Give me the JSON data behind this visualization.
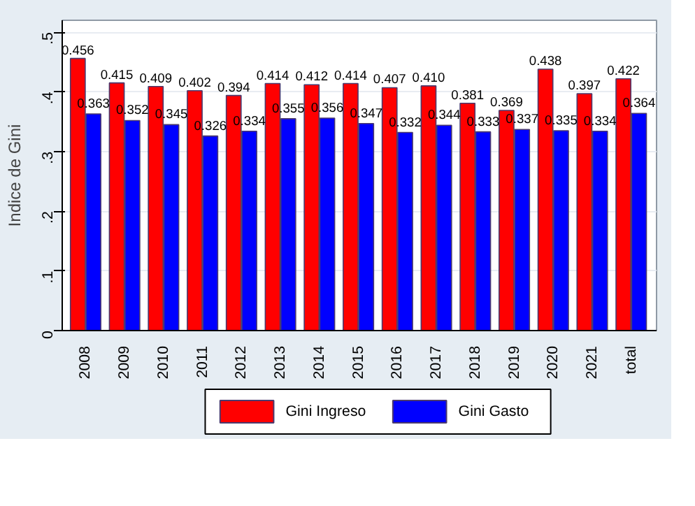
{
  "chart_data": {
    "type": "bar",
    "ylabel": "Indice de Gini",
    "categories": [
      "2008",
      "2009",
      "2010",
      "2011",
      "2012",
      "2013",
      "2014",
      "2015",
      "2016",
      "2017",
      "2018",
      "2019",
      "2020",
      "2021",
      "total"
    ],
    "series": [
      {
        "name": "Gini Ingreso",
        "color": "#ff0000",
        "values": [
          0.456,
          0.415,
          0.409,
          0.402,
          0.394,
          0.414,
          0.412,
          0.414,
          0.407,
          0.41,
          0.381,
          0.369,
          0.438,
          0.397,
          0.422
        ],
        "value_labels": [
          "0.456",
          "0.415",
          "0.409",
          "0.402",
          "0.394",
          "0.414",
          "0.412",
          "0.414",
          "0.407",
          "0.410",
          "0.381",
          "0.369",
          "0.438",
          "0.397",
          "0.422"
        ]
      },
      {
        "name": "Gini Gasto",
        "color": "#0000ff",
        "values": [
          0.363,
          0.352,
          0.345,
          0.326,
          0.334,
          0.355,
          0.356,
          0.347,
          0.332,
          0.344,
          0.333,
          0.337,
          0.335,
          0.334,
          0.364
        ],
        "value_labels": [
          "0.363",
          "0.352",
          "0.345",
          "0.326",
          "0.334",
          "0.355",
          "0.356",
          "0.347",
          "0.332",
          "0.344",
          "0.333",
          "0.337",
          "0.335",
          "0.334",
          "0.364"
        ]
      }
    ],
    "ylim": [
      0,
      0.52
    ],
    "yticks": [
      0,
      {
        "value": 0.1,
        "label": ".1"
      },
      {
        "value": 0.2,
        "label": ".2"
      },
      {
        "value": 0.3,
        "label": ".3"
      },
      {
        "value": 0.4,
        "label": ".4"
      },
      {
        "value": 0.5,
        "label": ".5"
      }
    ],
    "grid": "y",
    "legend": "bottom"
  }
}
